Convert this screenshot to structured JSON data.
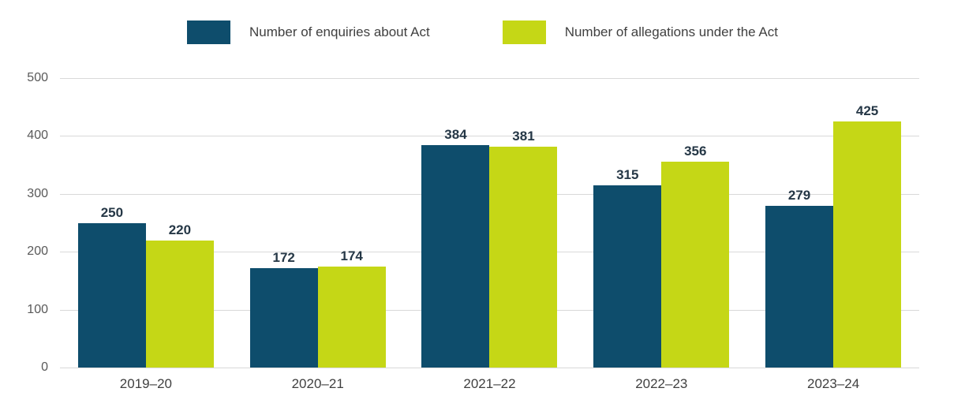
{
  "chart_data": {
    "type": "bar",
    "categories": [
      "2019–20",
      "2020–21",
      "2021–22",
      "2022–23",
      "2023–24"
    ],
    "series": [
      {
        "name": "Number of enquiries about Act",
        "color": "#0e4d6c",
        "values": [
          250,
          172,
          384,
          315,
          279
        ]
      },
      {
        "name": "Number of allegations under the Act",
        "color": "#c5d716",
        "values": [
          220,
          174,
          381,
          356,
          425
        ]
      }
    ],
    "title": "",
    "xlabel": "",
    "ylabel": "",
    "ylim": [
      0,
      500
    ],
    "yticks": [
      0,
      100,
      200,
      300,
      400,
      500
    ],
    "grid": true,
    "legend_position": "top",
    "colors": {
      "gridline": "#d9d9d9",
      "y_tick_text": "#595959",
      "x_tick_text": "#404040",
      "value_label_text": "#253746",
      "background": "#ffffff"
    }
  }
}
